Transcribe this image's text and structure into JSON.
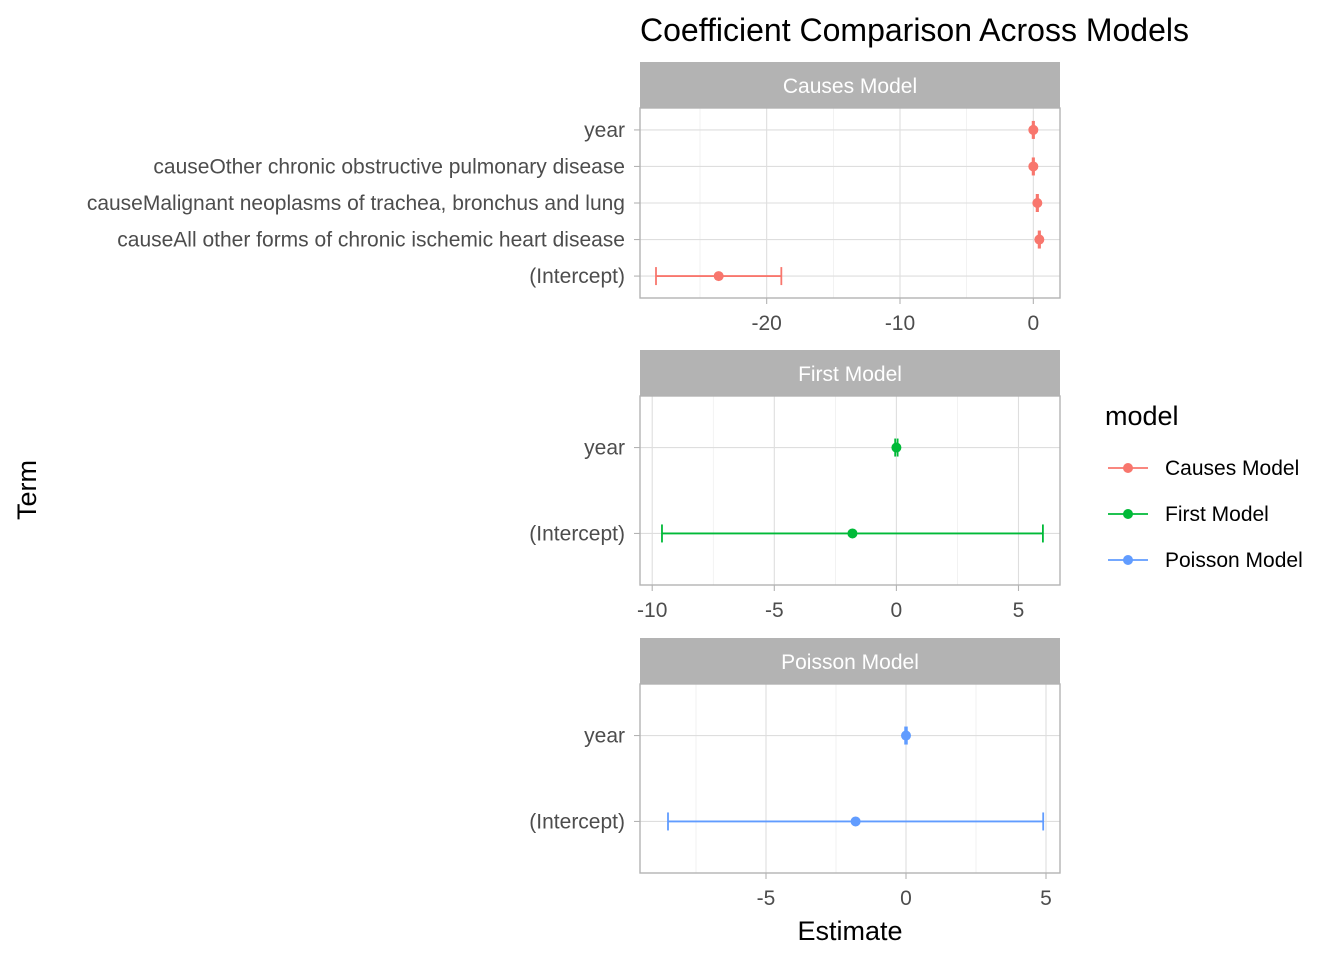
{
  "chart_data": {
    "type": "scatter",
    "subtype": "coefficient-plot-with-error-bars",
    "title": "Coefficient Comparison Across Models",
    "xlabel": "Estimate",
    "ylabel": "Term",
    "grid": true,
    "legend": {
      "title": "model",
      "placement": "right",
      "entries": [
        {
          "name": "Causes Model",
          "color": "#F8766D"
        },
        {
          "name": "First Model",
          "color": "#00BA38"
        },
        {
          "name": "Poisson Model",
          "color": "#619CFF"
        }
      ]
    },
    "panels": [
      {
        "strip": "Causes Model",
        "color": "#F8766D",
        "xlim": [
          -29.5,
          2.0
        ],
        "xticks": [
          -20,
          -10,
          0
        ],
        "xtick_labels": [
          "-20",
          "-10",
          "0"
        ],
        "terms": [
          {
            "term": "year",
            "estimate": 0.0,
            "low": -0.05,
            "high": 0.05
          },
          {
            "term": "causeOther chronic obstructive pulmonary disease",
            "estimate": 0.0,
            "low": -0.05,
            "high": 0.05
          },
          {
            "term": "causeMalignant neoplasms of trachea, bronchus and lung",
            "estimate": 0.3,
            "low": 0.25,
            "high": 0.35
          },
          {
            "term": "causeAll other forms of chronic ischemic heart disease",
            "estimate": 0.45,
            "low": 0.4,
            "high": 0.5
          },
          {
            "term": "(Intercept)",
            "estimate": -23.6,
            "low": -28.3,
            "high": -18.9
          }
        ]
      },
      {
        "strip": "First Model",
        "color": "#00BA38",
        "xlim": [
          -10.5,
          6.7
        ],
        "xticks": [
          -10,
          -5,
          0,
          5
        ],
        "xtick_labels": [
          "-10",
          "-5",
          "0",
          "5"
        ],
        "terms": [
          {
            "term": "year",
            "estimate": 0.0,
            "low": -0.05,
            "high": 0.05
          },
          {
            "term": "(Intercept)",
            "estimate": -1.8,
            "low": -9.6,
            "high": 6.0
          }
        ]
      },
      {
        "strip": "Poisson Model",
        "color": "#619CFF",
        "xlim": [
          -9.5,
          5.5
        ],
        "xticks": [
          -5,
          0,
          5
        ],
        "xtick_labels": [
          "-5",
          "0",
          "5"
        ],
        "terms": [
          {
            "term": "year",
            "estimate": 0.0,
            "low": -0.03,
            "high": 0.03
          },
          {
            "term": "(Intercept)",
            "estimate": -1.8,
            "low": -8.5,
            "high": 4.9
          }
        ]
      }
    ]
  }
}
